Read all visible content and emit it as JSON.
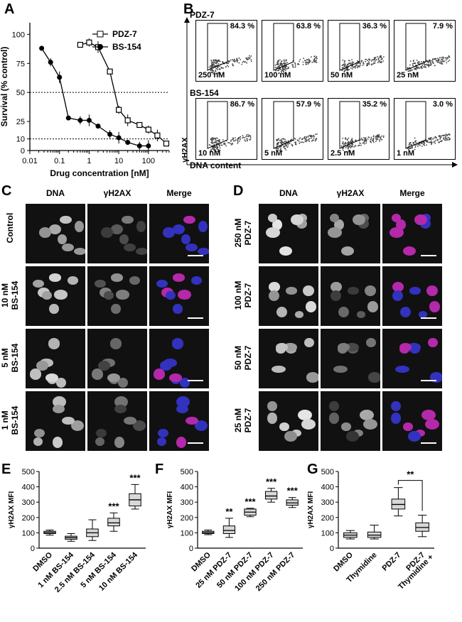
{
  "panels": {
    "A": "A",
    "B": "B",
    "C": "C",
    "D": "D",
    "E": "E",
    "F": "F",
    "G": "G"
  },
  "panelA": {
    "chart_data": {
      "type": "line",
      "xlabel": "Drug concentration [nM]",
      "ylabel": "Survival (% control)",
      "xscale": "log",
      "xlim": [
        0.01,
        500
      ],
      "ylim": [
        0,
        110
      ],
      "xticks": [
        "0.01",
        "0.1",
        "1",
        "10",
        "100"
      ],
      "yticks": [
        "0",
        "10",
        "25",
        "50",
        "75",
        "100"
      ],
      "reference_lines": [
        10,
        50
      ],
      "legend_position": "top-right",
      "series": [
        {
          "name": "PDZ-7",
          "marker": "open-square",
          "x": [
            0.5,
            1,
            2,
            5,
            10,
            20,
            50,
            100,
            200,
            400
          ],
          "y": [
            91,
            93,
            89,
            68,
            35,
            26,
            22,
            18,
            13,
            6
          ]
        },
        {
          "name": "BS-154",
          "marker": "filled-circle",
          "x": [
            0.025,
            0.05,
            0.1,
            0.2,
            0.5,
            1,
            2,
            5,
            10,
            20,
            50,
            100
          ],
          "y": [
            88,
            76,
            63,
            28,
            26,
            26,
            21,
            14,
            11,
            7,
            4,
            4
          ]
        }
      ]
    }
  },
  "panelB": {
    "row1_label": "PDZ-7",
    "row2_label": "BS-154",
    "ylabel": "γH2AX",
    "xlabel": "DNA content",
    "row1": [
      {
        "pct": "84.3 %",
        "conc": "250 nM"
      },
      {
        "pct": "63.8 %",
        "conc": "100 nM"
      },
      {
        "pct": "36.3 %",
        "conc": "50 nM"
      },
      {
        "pct": "7.9 %",
        "conc": "25 nM"
      }
    ],
    "row2": [
      {
        "pct": "86.7 %",
        "conc": "10 nM"
      },
      {
        "pct": "57.9 %",
        "conc": "5 nM"
      },
      {
        "pct": "35.2 %",
        "conc": "2.5 nM"
      },
      {
        "pct": "3.0 %",
        "conc": "1 nM"
      }
    ]
  },
  "panelC": {
    "cols": [
      "DNA",
      "γH2AX",
      "Merge"
    ],
    "rows": [
      {
        "l1": "Control",
        "l2": ""
      },
      {
        "l1": "10 nM",
        "l2": "BS-154"
      },
      {
        "l1": "5 nM",
        "l2": "BS-154"
      },
      {
        "l1": "1 nM",
        "l2": "BS-154"
      }
    ]
  },
  "panelD": {
    "cols": [
      "DNA",
      "γH2AX",
      "Merge"
    ],
    "rows": [
      {
        "l1": "250 nM",
        "l2": "PDZ-7"
      },
      {
        "l1": "100 nM",
        "l2": "PDZ-7"
      },
      {
        "l1": "50 nM",
        "l2": "PDZ-7"
      },
      {
        "l1": "25 nM",
        "l2": "PDZ-7"
      }
    ]
  },
  "chart_data": [
    {
      "panel": "E",
      "type": "box",
      "ylabel": "γH2AX MFI",
      "ylim": [
        0,
        500
      ],
      "yticks": [
        "0",
        "100",
        "200",
        "300",
        "400",
        "500"
      ],
      "categories": [
        "DMSO",
        "1 nM BS-154",
        "2.5 nM BS-154",
        "5 nM BS-154",
        "10 nM BS-154"
      ],
      "boxes": [
        {
          "min": 85,
          "q1": 95,
          "median": 102,
          "q3": 110,
          "max": 118,
          "sig": ""
        },
        {
          "min": 45,
          "q1": 58,
          "median": 68,
          "q3": 78,
          "max": 95,
          "sig": ""
        },
        {
          "min": 50,
          "q1": 75,
          "median": 100,
          "q3": 125,
          "max": 185,
          "sig": ""
        },
        {
          "min": 110,
          "q1": 145,
          "median": 165,
          "q3": 195,
          "max": 230,
          "sig": "***"
        },
        {
          "min": 255,
          "q1": 275,
          "median": 315,
          "q3": 355,
          "max": 415,
          "sig": "***"
        }
      ]
    },
    {
      "panel": "F",
      "type": "box",
      "ylabel": "γH2AX MFI",
      "ylim": [
        0,
        500
      ],
      "yticks": [
        "0",
        "100",
        "200",
        "300",
        "400",
        "500"
      ],
      "categories": [
        "DMSO",
        "25 nM PDZ-7",
        "50 nM PDZ-7",
        "100 nM PDZ-7",
        "250 nM PDZ-7"
      ],
      "boxes": [
        {
          "min": 88,
          "q1": 95,
          "median": 102,
          "q3": 110,
          "max": 118,
          "sig": ""
        },
        {
          "min": 70,
          "q1": 95,
          "median": 115,
          "q3": 145,
          "max": 195,
          "sig": "**"
        },
        {
          "min": 205,
          "q1": 215,
          "median": 235,
          "q3": 255,
          "max": 260,
          "sig": "***"
        },
        {
          "min": 300,
          "q1": 320,
          "median": 340,
          "q3": 370,
          "max": 390,
          "sig": "***"
        },
        {
          "min": 265,
          "q1": 280,
          "median": 295,
          "q3": 315,
          "max": 330,
          "sig": "***"
        }
      ]
    },
    {
      "panel": "G",
      "type": "box",
      "ylabel": "γH2AX MFI",
      "ylim": [
        0,
        500
      ],
      "yticks": [
        "0",
        "100",
        "200",
        "300",
        "400",
        "500"
      ],
      "categories": [
        "DMSO",
        "Thymidine",
        "PDZ-7",
        "Thymidine + PDZ-7"
      ],
      "cat_lines": [
        [
          "DMSO"
        ],
        [
          "Thymidine"
        ],
        [
          "PDZ-7"
        ],
        [
          "PDZ-7",
          "Thymidine +"
        ]
      ],
      "boxes": [
        {
          "min": 60,
          "q1": 70,
          "median": 85,
          "q3": 100,
          "max": 115
        },
        {
          "min": 60,
          "q1": 70,
          "median": 85,
          "q3": 105,
          "max": 150
        },
        {
          "min": 210,
          "q1": 255,
          "median": 285,
          "q3": 320,
          "max": 395
        },
        {
          "min": 75,
          "q1": 110,
          "median": 135,
          "q3": 165,
          "max": 215
        }
      ],
      "bracket": {
        "from": 2,
        "to": 3,
        "label": "**"
      }
    }
  ]
}
